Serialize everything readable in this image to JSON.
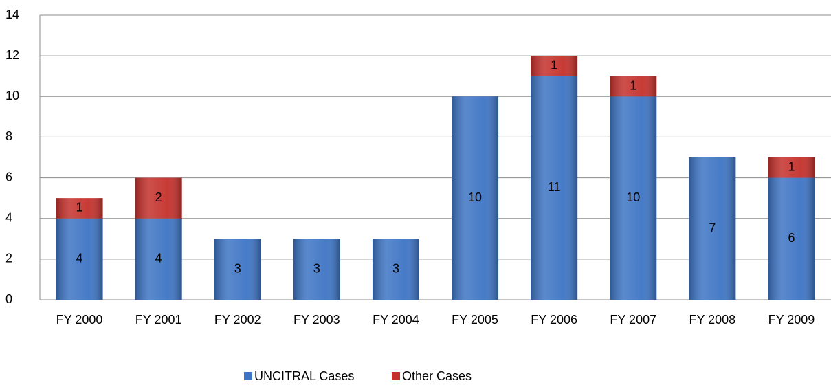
{
  "chart_data": {
    "type": "stacked_bar",
    "categories": [
      "FY 2000",
      "FY 2001",
      "FY 2002",
      "FY 2003",
      "FY 2004",
      "FY 2005",
      "FY 2006",
      "FY 2007",
      "FY 2008",
      "FY 2009"
    ],
    "series": [
      {
        "name": "UNCITRAL Cases",
        "color": "#3d74c4",
        "values": [
          4,
          4,
          3,
          3,
          3,
          10,
          11,
          10,
          7,
          6
        ]
      },
      {
        "name": "Other Cases",
        "color": "#c4302b",
        "values": [
          1,
          2,
          0,
          0,
          0,
          0,
          1,
          1,
          0,
          1
        ]
      }
    ],
    "ylim": [
      0,
      14
    ],
    "yticks": [
      0,
      2,
      4,
      6,
      8,
      10,
      12,
      14
    ],
    "grid": true,
    "legend": "bottom"
  }
}
